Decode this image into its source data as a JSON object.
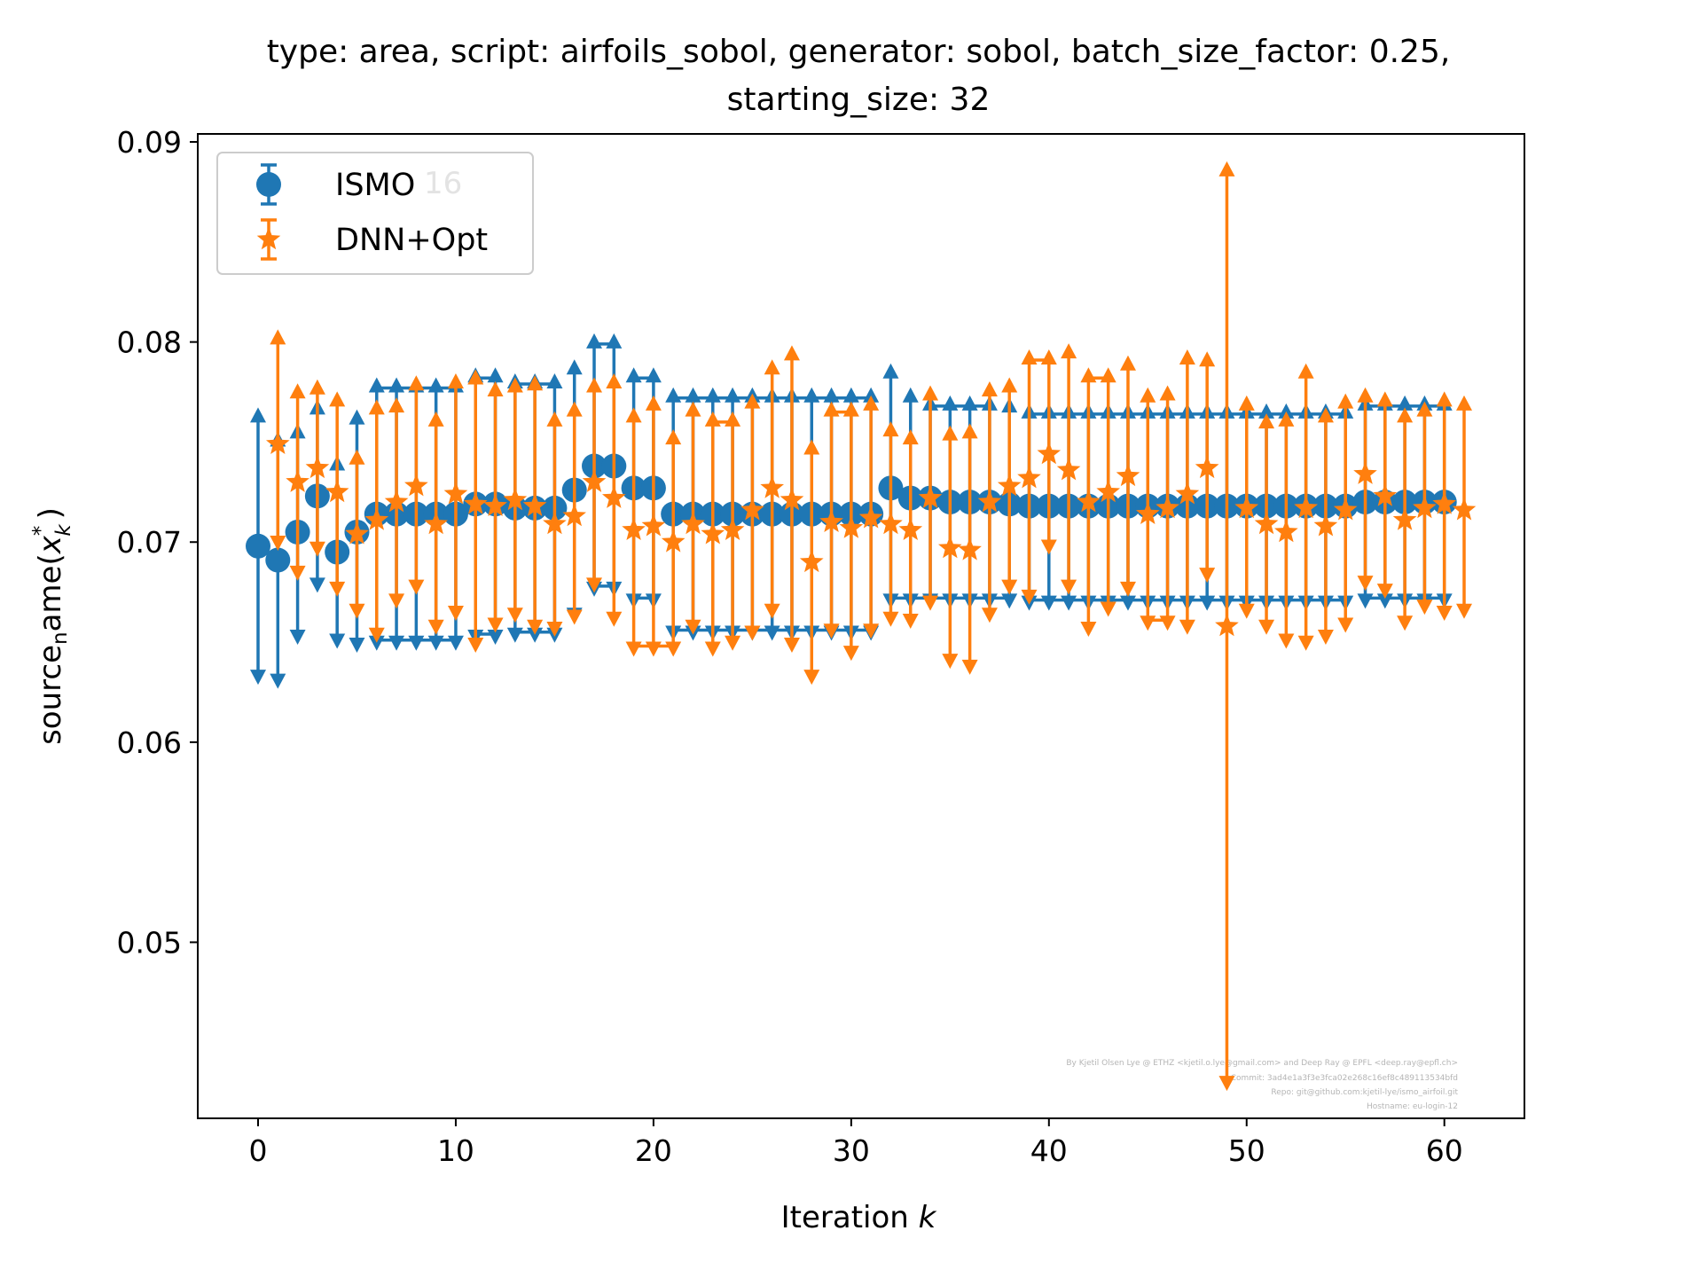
{
  "chart_data": {
    "type": "errorbar",
    "title_line1": "type: area, script: airfoils_sobol, generator: sobol, batch_size_factor: 0.25,",
    "title_line2": "starting_size: 32",
    "xlabel": "Iteration k",
    "xlabel_text": "Iteration ",
    "xlabel_var": "k",
    "ylabel": "source_name(x_k^*)",
    "ylabel_main": "source",
    "ylabel_sub": "n",
    "ylabel_rest": "ame(",
    "ylabel_var": "x",
    "ylabel_var_sub": "k",
    "ylabel_var_sup": "*",
    "ylabel_close": ")",
    "xlim": [
      -3.05,
      64.05
    ],
    "ylim": [
      0.0412,
      0.0904
    ],
    "x_ticks": [
      0,
      10,
      20,
      30,
      40,
      50,
      60
    ],
    "x_tick_labels": [
      "0",
      "10",
      "20",
      "30",
      "40",
      "50",
      "60"
    ],
    "y_ticks": [
      0.05,
      0.06,
      0.07,
      0.08,
      0.09
    ],
    "y_tick_labels": [
      "0.05",
      "0.06",
      "0.07",
      "0.08",
      "0.09"
    ],
    "grid": false,
    "legend_position": "upper-left",
    "legend_ghost_text": "16",
    "series": [
      {
        "name": "ISMO",
        "color": "#1f77b4",
        "marker": "circle",
        "x": [
          0,
          1,
          2,
          3,
          4,
          5,
          6,
          7,
          8,
          9,
          10,
          11,
          12,
          13,
          14,
          15,
          16,
          17,
          18,
          19,
          20,
          21,
          22,
          23,
          24,
          25,
          26,
          27,
          28,
          29,
          30,
          31,
          32,
          33,
          34,
          35,
          36,
          37,
          38,
          39,
          40,
          41,
          42,
          43,
          44,
          45,
          46,
          47,
          48,
          49,
          50,
          51,
          52,
          53,
          54,
          55,
          56,
          57,
          58,
          59,
          60
        ],
        "y": [
          0.0698,
          0.0691,
          0.0705,
          0.0723,
          0.0695,
          0.0705,
          0.0714,
          0.0714,
          0.0714,
          0.0714,
          0.0714,
          0.0719,
          0.0719,
          0.0717,
          0.0717,
          0.0717,
          0.0726,
          0.0738,
          0.0738,
          0.0727,
          0.0727,
          0.0714,
          0.0714,
          0.0714,
          0.0714,
          0.0714,
          0.0714,
          0.0714,
          0.0714,
          0.0714,
          0.0714,
          0.0714,
          0.0727,
          0.0722,
          0.0722,
          0.072,
          0.072,
          0.072,
          0.0719,
          0.0718,
          0.0718,
          0.0718,
          0.0718,
          0.0718,
          0.0718,
          0.0718,
          0.0718,
          0.0718,
          0.0718,
          0.0718,
          0.0718,
          0.0718,
          0.0718,
          0.0718,
          0.0718,
          0.0718,
          0.072,
          0.072,
          0.072,
          0.072,
          0.072
        ],
        "y_low": [
          0.0634,
          0.0632,
          0.0654,
          0.068,
          0.0652,
          0.065,
          0.0651,
          0.0651,
          0.0651,
          0.0651,
          0.0651,
          0.0654,
          0.0654,
          0.0655,
          0.0655,
          0.0655,
          0.0665,
          0.0678,
          0.0678,
          0.0672,
          0.0672,
          0.0656,
          0.0656,
          0.0656,
          0.0656,
          0.0656,
          0.0656,
          0.0656,
          0.0656,
          0.0656,
          0.0656,
          0.0656,
          0.0672,
          0.0672,
          0.0672,
          0.0672,
          0.0672,
          0.0672,
          0.0672,
          0.0671,
          0.0671,
          0.0671,
          0.0671,
          0.0671,
          0.0671,
          0.0671,
          0.0671,
          0.0671,
          0.0671,
          0.0671,
          0.0671,
          0.0671,
          0.0671,
          0.0671,
          0.0671,
          0.0671,
          0.0672,
          0.0672,
          0.0672,
          0.0672,
          0.0672
        ],
        "y_high": [
          0.0762,
          0.075,
          0.0754,
          0.0766,
          0.0738,
          0.0761,
          0.0777,
          0.0777,
          0.0777,
          0.0777,
          0.0777,
          0.0782,
          0.0782,
          0.0779,
          0.0779,
          0.0779,
          0.0786,
          0.0799,
          0.0799,
          0.0782,
          0.0782,
          0.0772,
          0.0772,
          0.0772,
          0.0772,
          0.0772,
          0.0772,
          0.0772,
          0.0772,
          0.0772,
          0.0772,
          0.0772,
          0.0784,
          0.0772,
          0.0768,
          0.0768,
          0.0768,
          0.0768,
          0.0767,
          0.0764,
          0.0764,
          0.0764,
          0.0764,
          0.0764,
          0.0764,
          0.0764,
          0.0764,
          0.0764,
          0.0764,
          0.0764,
          0.0764,
          0.0764,
          0.0764,
          0.0764,
          0.0764,
          0.0764,
          0.0768,
          0.0768,
          0.0768,
          0.0768,
          0.0768
        ]
      },
      {
        "name": "DNN+Opt",
        "color": "#ff7f0e",
        "marker": "star",
        "x": [
          1,
          2,
          3,
          4,
          5,
          6,
          7,
          8,
          9,
          10,
          11,
          12,
          13,
          14,
          15,
          16,
          17,
          18,
          19,
          20,
          21,
          22,
          23,
          24,
          25,
          26,
          27,
          28,
          29,
          30,
          31,
          32,
          33,
          34,
          35,
          36,
          37,
          38,
          39,
          40,
          41,
          42,
          43,
          44,
          45,
          46,
          47,
          48,
          49,
          50,
          51,
          52,
          53,
          54,
          55,
          56,
          57,
          58,
          59,
          60,
          61
        ],
        "y": [
          0.0749,
          0.073,
          0.0737,
          0.0725,
          0.0704,
          0.0711,
          0.072,
          0.0728,
          0.0709,
          0.0724,
          0.0719,
          0.0718,
          0.0721,
          0.0718,
          0.0709,
          0.0713,
          0.073,
          0.0722,
          0.0706,
          0.0708,
          0.07,
          0.0709,
          0.0704,
          0.0706,
          0.0716,
          0.0727,
          0.0721,
          0.069,
          0.071,
          0.0707,
          0.0712,
          0.0709,
          0.0706,
          0.0722,
          0.0697,
          0.0696,
          0.072,
          0.0728,
          0.0732,
          0.0744,
          0.0736,
          0.072,
          0.0725,
          0.0733,
          0.0714,
          0.0717,
          0.0724,
          0.0737,
          0.0658,
          0.0717,
          0.0709,
          0.0705,
          0.0717,
          0.0708,
          0.0716,
          0.0734,
          0.0723,
          0.0711,
          0.0717,
          0.0719,
          0.0716
        ],
        "y_low": [
          0.0701,
          0.0686,
          0.0698,
          0.0678,
          0.0667,
          0.0655,
          0.0672,
          0.0679,
          0.0659,
          0.0666,
          0.065,
          0.066,
          0.0665,
          0.0659,
          0.0658,
          0.0664,
          0.068,
          0.0663,
          0.0648,
          0.0648,
          0.0648,
          0.0659,
          0.0648,
          0.0651,
          0.0656,
          0.0667,
          0.065,
          0.0634,
          0.0657,
          0.0646,
          0.0657,
          0.0663,
          0.0662,
          0.0671,
          0.0642,
          0.0639,
          0.0665,
          0.0679,
          0.0674,
          0.0699,
          0.0679,
          0.0658,
          0.0668,
          0.0678,
          0.0661,
          0.0661,
          0.0659,
          0.0685,
          0.0431,
          0.0667,
          0.0659,
          0.0652,
          0.0651,
          0.0654,
          0.066,
          0.0681,
          0.0677,
          0.0661,
          0.0669,
          0.0666,
          0.0667
        ],
        "y_high": [
          0.0801,
          0.0774,
          0.0776,
          0.077,
          0.0741,
          0.0766,
          0.0767,
          0.0778,
          0.076,
          0.0779,
          0.0781,
          0.0775,
          0.0777,
          0.0778,
          0.076,
          0.0765,
          0.0777,
          0.0779,
          0.0762,
          0.0768,
          0.0751,
          0.0765,
          0.076,
          0.076,
          0.0769,
          0.0786,
          0.0793,
          0.0746,
          0.0765,
          0.0765,
          0.0768,
          0.0755,
          0.0751,
          0.0773,
          0.0753,
          0.0754,
          0.0775,
          0.0777,
          0.0791,
          0.0791,
          0.0794,
          0.0782,
          0.0782,
          0.0788,
          0.0772,
          0.0773,
          0.0791,
          0.079,
          0.0885,
          0.0768,
          0.0759,
          0.076,
          0.0784,
          0.0762,
          0.0769,
          0.0772,
          0.077,
          0.0762,
          0.0765,
          0.077,
          0.0768
        ]
      }
    ],
    "watermark_lines": [
      "By Kjetil Olsen Lye @ ETHZ <kjetil.o.lye@gmail.com> and Deep Ray @ EPFL <deep.ray@epfl.ch>",
      "Commit: 3ad4e1a3f3e3fca02e268c16ef8c489113534bfd",
      "Repo: git@github.com:kjetil-lye/ismo_airfoil.git",
      "Hostname: eu-login-12"
    ]
  }
}
